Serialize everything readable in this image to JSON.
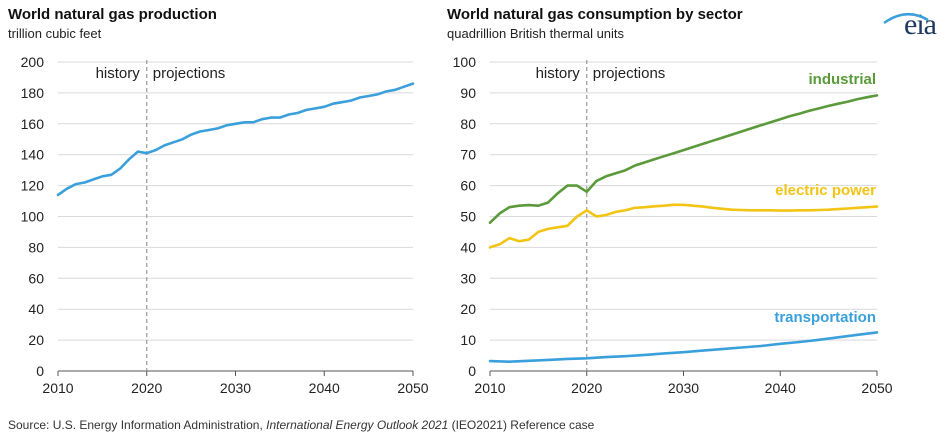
{
  "logo": {
    "text": "eia",
    "arc_color": "#3aa0dc",
    "text_color": "#1f3a60"
  },
  "source": {
    "prefix": "Source:  U.S. Energy Information Administration, ",
    "italic": "International Energy Outlook 2021",
    "suffix": " (IEO2021) Reference case"
  },
  "chart_data": [
    {
      "type": "line",
      "title": "World natural gas production",
      "subtitle": "trillion cubic feet",
      "xlabel": "",
      "ylabel": "",
      "xlim": [
        2010,
        2050
      ],
      "ylim": [
        0,
        200
      ],
      "xticks": [
        2010,
        2020,
        2030,
        2040,
        2050
      ],
      "yticks": [
        0,
        20,
        40,
        60,
        80,
        100,
        120,
        140,
        160,
        180,
        200
      ],
      "grid": true,
      "divider": {
        "x": 2020,
        "left_label": "history",
        "right_label": "projections"
      },
      "series": [
        {
          "color": "#3aa0dc",
          "x": [
            2010,
            2011,
            2012,
            2013,
            2014,
            2015,
            2016,
            2017,
            2018,
            2019,
            2020,
            2021,
            2022,
            2023,
            2024,
            2025,
            2026,
            2027,
            2028,
            2029,
            2030,
            2031,
            2032,
            2033,
            2034,
            2035,
            2036,
            2037,
            2038,
            2039,
            2040,
            2041,
            2042,
            2043,
            2044,
            2045,
            2046,
            2047,
            2048,
            2049,
            2050
          ],
          "values": [
            114,
            118,
            121,
            122,
            124,
            126,
            127,
            131,
            137,
            142,
            141,
            143,
            146,
            148,
            150,
            153,
            155,
            156,
            157,
            159,
            160,
            161,
            161,
            163,
            164,
            164,
            166,
            167,
            169,
            170,
            171,
            173,
            174,
            175,
            177,
            178,
            179,
            181,
            182,
            184,
            186
          ]
        }
      ]
    },
    {
      "type": "line",
      "title": "World natural gas consumption by sector",
      "subtitle": "quadrillion  British thermal units",
      "xlabel": "",
      "ylabel": "",
      "xlim": [
        2010,
        2050
      ],
      "ylim": [
        0,
        100
      ],
      "xticks": [
        2010,
        2020,
        2030,
        2040,
        2050
      ],
      "yticks": [
        0,
        10,
        20,
        30,
        40,
        50,
        60,
        70,
        80,
        90,
        100
      ],
      "grid": true,
      "divider": {
        "x": 2020,
        "left_label": "history",
        "right_label": "projections"
      },
      "series": [
        {
          "name": "industrial",
          "color": "#5a9a3a",
          "x": [
            2010,
            2011,
            2012,
            2013,
            2014,
            2015,
            2016,
            2017,
            2018,
            2019,
            2020,
            2021,
            2022,
            2023,
            2024,
            2025,
            2026,
            2027,
            2028,
            2029,
            2030,
            2031,
            2032,
            2033,
            2034,
            2035,
            2036,
            2037,
            2038,
            2039,
            2040,
            2041,
            2042,
            2043,
            2044,
            2045,
            2046,
            2047,
            2048,
            2049,
            2050
          ],
          "values": [
            48,
            51,
            53,
            53.5,
            53.7,
            53.5,
            54.5,
            57.5,
            60,
            60,
            58,
            61.5,
            63,
            64,
            65,
            66.5,
            67.5,
            68.5,
            69.5,
            70.5,
            71.5,
            72.5,
            73.5,
            74.5,
            75.5,
            76.5,
            77.5,
            78.5,
            79.5,
            80.5,
            81.5,
            82.5,
            83.3,
            84.2,
            85,
            85.8,
            86.5,
            87.2,
            88,
            88.6,
            89.2
          ]
        },
        {
          "name": "electric power",
          "color": "#f2c414",
          "x": [
            2010,
            2011,
            2012,
            2013,
            2014,
            2015,
            2016,
            2017,
            2018,
            2019,
            2020,
            2021,
            2022,
            2023,
            2024,
            2025,
            2026,
            2027,
            2028,
            2029,
            2030,
            2031,
            2032,
            2033,
            2034,
            2035,
            2036,
            2037,
            2038,
            2039,
            2040,
            2041,
            2042,
            2043,
            2044,
            2045,
            2046,
            2047,
            2048,
            2049,
            2050
          ],
          "values": [
            40,
            41,
            43,
            42,
            42.5,
            45,
            46,
            46.5,
            47,
            50,
            52,
            50,
            50.5,
            51.5,
            52,
            52.8,
            53,
            53.3,
            53.5,
            53.8,
            53.8,
            53.5,
            53.2,
            52.8,
            52.5,
            52.2,
            52.1,
            52,
            52,
            52,
            51.9,
            51.9,
            52,
            52,
            52.1,
            52.2,
            52.4,
            52.6,
            52.8,
            53,
            53.2
          ]
        },
        {
          "name": "transportation",
          "color": "#3aa0dc",
          "x": [
            2010,
            2012,
            2014,
            2016,
            2018,
            2020,
            2022,
            2024,
            2026,
            2028,
            2030,
            2032,
            2034,
            2036,
            2038,
            2040,
            2042,
            2044,
            2046,
            2048,
            2050
          ],
          "values": [
            3.2,
            3,
            3.3,
            3.6,
            3.9,
            4.1,
            4.5,
            4.8,
            5.2,
            5.7,
            6.1,
            6.6,
            7.1,
            7.6,
            8.1,
            8.8,
            9.4,
            10.1,
            10.9,
            11.7,
            12.5
          ]
        }
      ]
    }
  ]
}
